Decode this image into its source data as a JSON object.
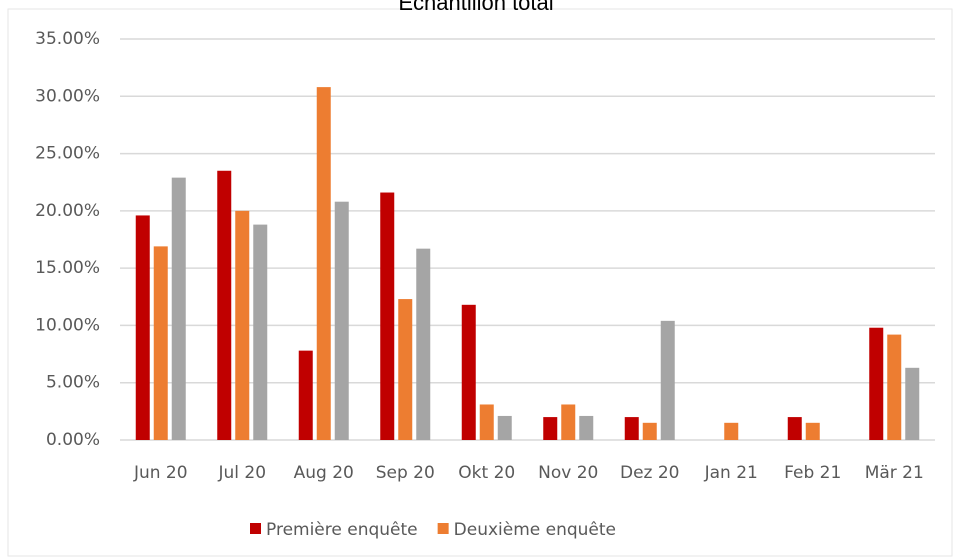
{
  "chart_data": {
    "type": "bar",
    "title": "Echantillon total",
    "categories": [
      "Jun 20",
      "Jul 20",
      "Aug 20",
      "Sep 20",
      "Okt 20",
      "Nov 20",
      "Dez 20",
      "Jan 21",
      "Feb 21",
      "Mär 21"
    ],
    "series": [
      {
        "name": "Première enquête",
        "color": "#c00000",
        "values": [
          19.6,
          23.5,
          7.8,
          21.6,
          11.8,
          2.0,
          2.0,
          0,
          2.0,
          9.8
        ]
      },
      {
        "name": "Deuxième enquête",
        "color": "#ed7d31",
        "values": [
          16.9,
          20.0,
          30.8,
          12.3,
          3.1,
          3.1,
          1.5,
          1.5,
          1.5,
          9.2
        ]
      },
      {
        "color": "#a5a5a5",
        "values": [
          22.9,
          18.8,
          20.8,
          16.7,
          2.1,
          2.1,
          10.4,
          0,
          0,
          6.3
        ]
      }
    ],
    "ylim": [
      0,
      35
    ],
    "yticks": [
      {
        "value": 0,
        "label": "0.00%"
      },
      {
        "value": 5,
        "label": "5.00%"
      },
      {
        "value": 10,
        "label": "10.00%"
      },
      {
        "value": 15,
        "label": "15.00%"
      },
      {
        "value": 20,
        "label": "20.00%"
      },
      {
        "value": 25,
        "label": "25.00%"
      },
      {
        "value": 30,
        "label": "30.00%"
      },
      {
        "value": 35,
        "label": "35.00%"
      }
    ],
    "grid": true,
    "legend": "bottom"
  }
}
